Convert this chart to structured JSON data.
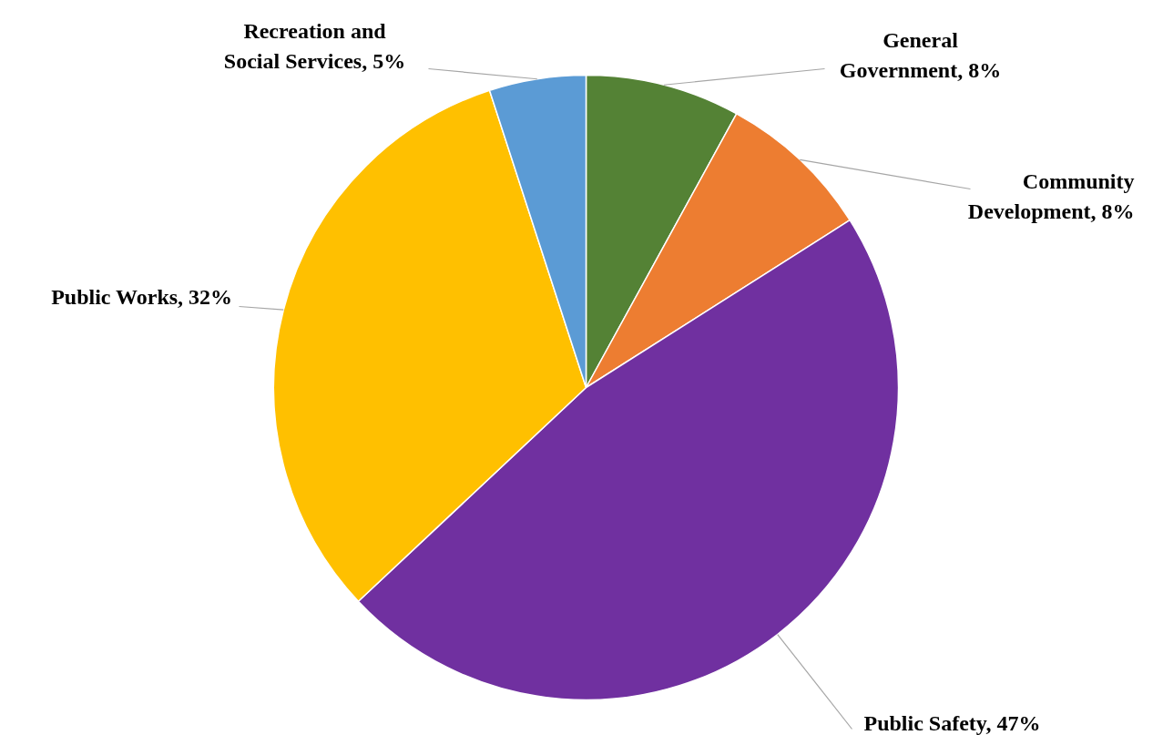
{
  "chart_data": {
    "type": "pie",
    "categories": [
      "General Government",
      "Community Development",
      "Public Safety",
      "Public Works",
      "Recreation and Social Services"
    ],
    "values": [
      8,
      8,
      47,
      32,
      5
    ],
    "value_labels": [
      "8%",
      "8%",
      "47%",
      "32%",
      "5%"
    ],
    "colors": [
      "#548235",
      "#ed7d31",
      "#7030a0",
      "#ffc000",
      "#5b9bd5"
    ],
    "legend": false
  }
}
